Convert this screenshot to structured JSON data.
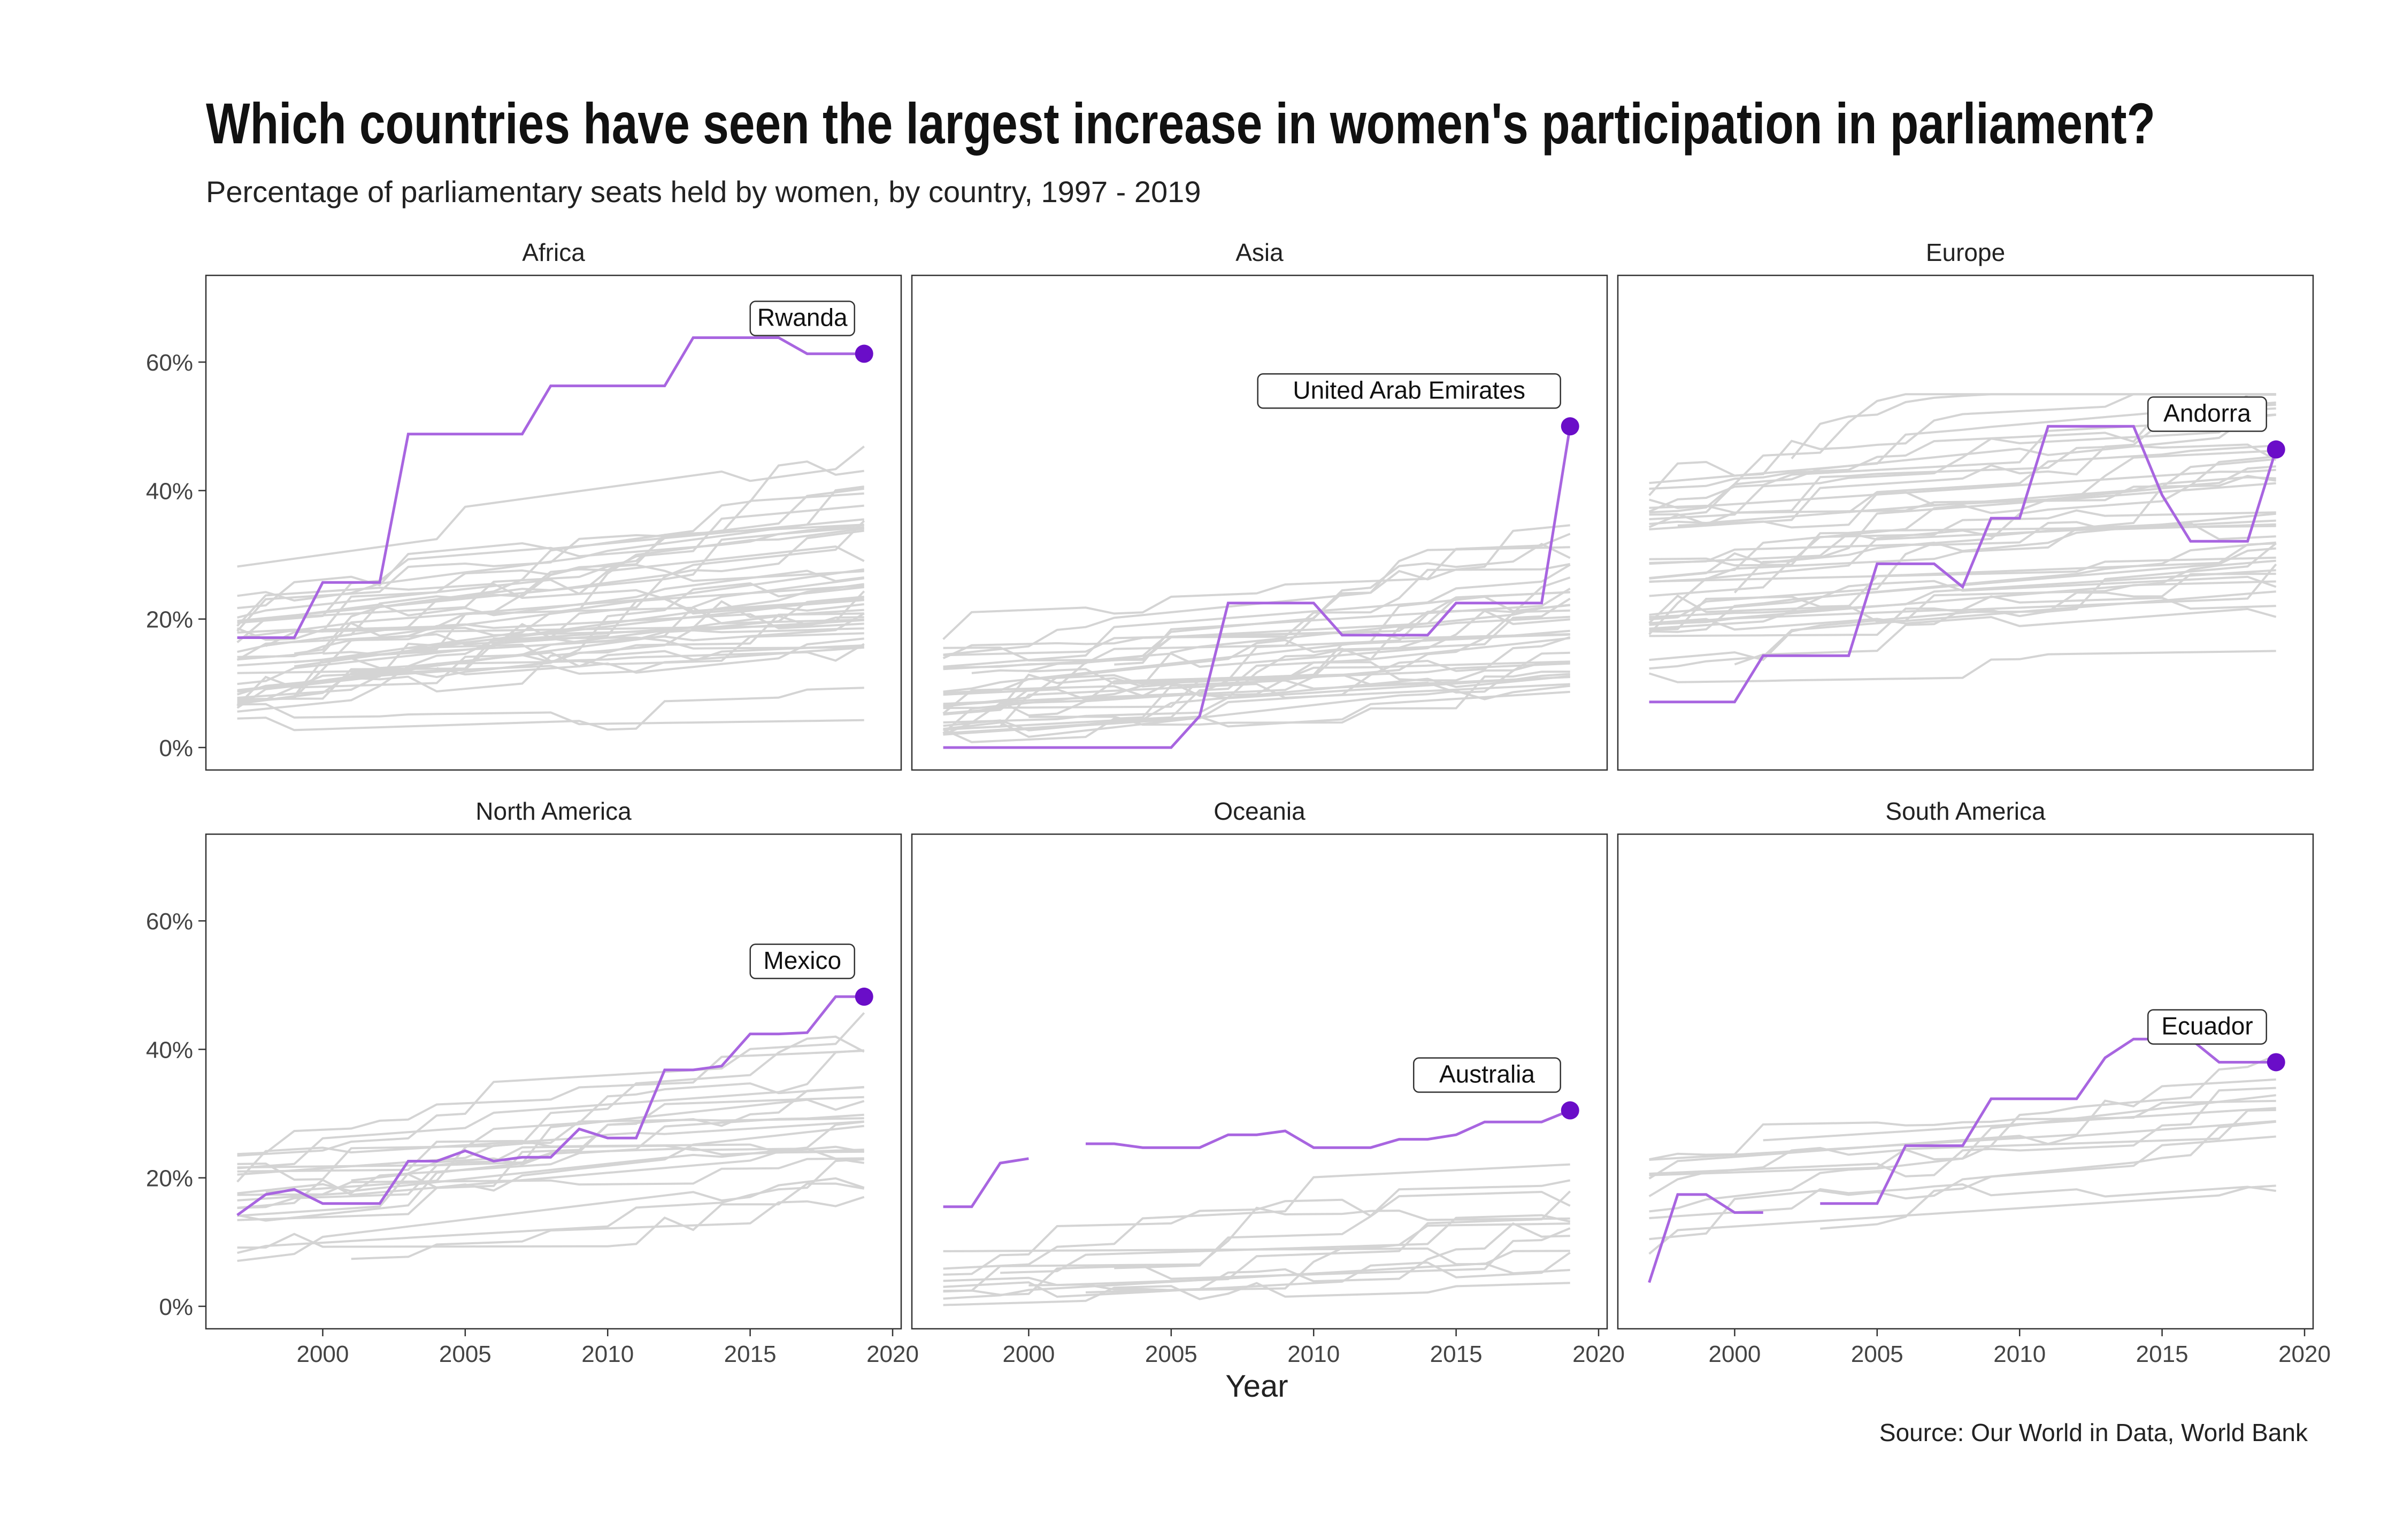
{
  "title": "Which countries have seen the largest increase in women's participation in parliament?",
  "subtitle": "Percentage of parliamentary seats held by women, by country, 1997 - 2019",
  "caption": "Source: Our World in Data, World Bank",
  "colors": {
    "highlight_line": "#a865e0",
    "highlight_point": "#6a0dc8",
    "background_lines": "#d4d4d4",
    "panel_border": "#333333",
    "text": "#222222"
  },
  "chart_data": {
    "type": "line",
    "xlabel": "Year",
    "ylabel": "",
    "xlim": [
      1997,
      2019
    ],
    "ylim": [
      0,
      70
    ],
    "x_ticks": [
      2000,
      2005,
      2010,
      2015,
      2020
    ],
    "y_ticks": [
      0,
      20,
      40,
      60
    ],
    "y_tick_labels": [
      "0%",
      "20%",
      "40%",
      "60%"
    ],
    "grid": false,
    "panels": [
      {
        "name": "Africa",
        "highlight": "Rwanda",
        "years": [
          1997,
          1998,
          1999,
          2000,
          2001,
          2002,
          2003,
          2004,
          2005,
          2006,
          2007,
          2008,
          2009,
          2010,
          2011,
          2012,
          2013,
          2014,
          2015,
          2016,
          2017,
          2018,
          2019
        ],
        "values": [
          17.1,
          17.1,
          17.1,
          25.7,
          25.7,
          25.7,
          48.8,
          48.8,
          48.8,
          48.8,
          48.8,
          56.3,
          56.3,
          56.3,
          56.3,
          56.3,
          63.8,
          63.8,
          63.8,
          63.8,
          61.3,
          61.3,
          61.3
        ]
      },
      {
        "name": "Asia",
        "highlight": "United Arab Emirates",
        "years": [
          1997,
          1998,
          1999,
          2000,
          2001,
          2002,
          2003,
          2004,
          2005,
          2006,
          2007,
          2008,
          2009,
          2010,
          2011,
          2012,
          2013,
          2014,
          2015,
          2016,
          2017,
          2018,
          2019
        ],
        "values": [
          0,
          0,
          0,
          0,
          0,
          0,
          0,
          0,
          0,
          4.9,
          22.5,
          22.5,
          22.5,
          22.5,
          17.5,
          17.5,
          17.5,
          17.5,
          22.5,
          22.5,
          22.5,
          22.5,
          50
        ]
      },
      {
        "name": "Europe",
        "highlight": "Andorra",
        "years": [
          1997,
          1998,
          1999,
          2000,
          2001,
          2002,
          2003,
          2004,
          2005,
          2006,
          2007,
          2008,
          2009,
          2010,
          2011,
          2012,
          2013,
          2014,
          2015,
          2016,
          2017,
          2018,
          2019
        ],
        "values": [
          7.1,
          7.1,
          7.1,
          7.1,
          14.3,
          14.3,
          14.3,
          14.3,
          28.6,
          28.6,
          28.6,
          25,
          35.7,
          35.7,
          50,
          50,
          50,
          50,
          39.3,
          32.1,
          32.1,
          32.1,
          46.4
        ]
      },
      {
        "name": "North America",
        "highlight": "Mexico",
        "years": [
          1997,
          1998,
          1999,
          2000,
          2001,
          2002,
          2003,
          2004,
          2005,
          2006,
          2007,
          2008,
          2009,
          2010,
          2011,
          2012,
          2013,
          2014,
          2015,
          2016,
          2017,
          2018,
          2019
        ],
        "values": [
          14.2,
          17.4,
          18.2,
          16,
          16,
          16,
          22.6,
          22.6,
          24.2,
          22.6,
          23.2,
          23.2,
          27.6,
          26.2,
          26.2,
          36.8,
          36.8,
          37.4,
          42.4,
          42.4,
          42.6,
          48.2,
          48.2
        ]
      },
      {
        "name": "Oceania",
        "highlight": "Australia",
        "years": [
          1997,
          1998,
          1999,
          2000,
          2001,
          2002,
          2003,
          2004,
          2005,
          2006,
          2007,
          2008,
          2009,
          2010,
          2011,
          2012,
          2013,
          2014,
          2015,
          2016,
          2017,
          2018,
          2019
        ],
        "values": [
          15.5,
          15.5,
          22.3,
          23,
          null,
          25.3,
          25.3,
          24.7,
          24.7,
          24.7,
          26.7,
          26.7,
          27.3,
          24.7,
          24.7,
          24.7,
          26,
          26,
          26.7,
          28.7,
          28.7,
          28.7,
          30.5
        ]
      },
      {
        "name": "South America",
        "highlight": "Ecuador",
        "years": [
          1997,
          1998,
          1999,
          2000,
          2001,
          2002,
          2003,
          2004,
          2005,
          2006,
          2007,
          2008,
          2009,
          2010,
          2011,
          2012,
          2013,
          2014,
          2015,
          2016,
          2017,
          2018,
          2019
        ],
        "values": [
          3.7,
          17.4,
          17.4,
          14.6,
          14.6,
          null,
          16,
          16,
          16,
          25,
          25,
          25,
          32.3,
          32.3,
          32.3,
          32.3,
          38.7,
          41.6,
          41.6,
          41.6,
          38,
          38,
          38
        ]
      }
    ]
  }
}
